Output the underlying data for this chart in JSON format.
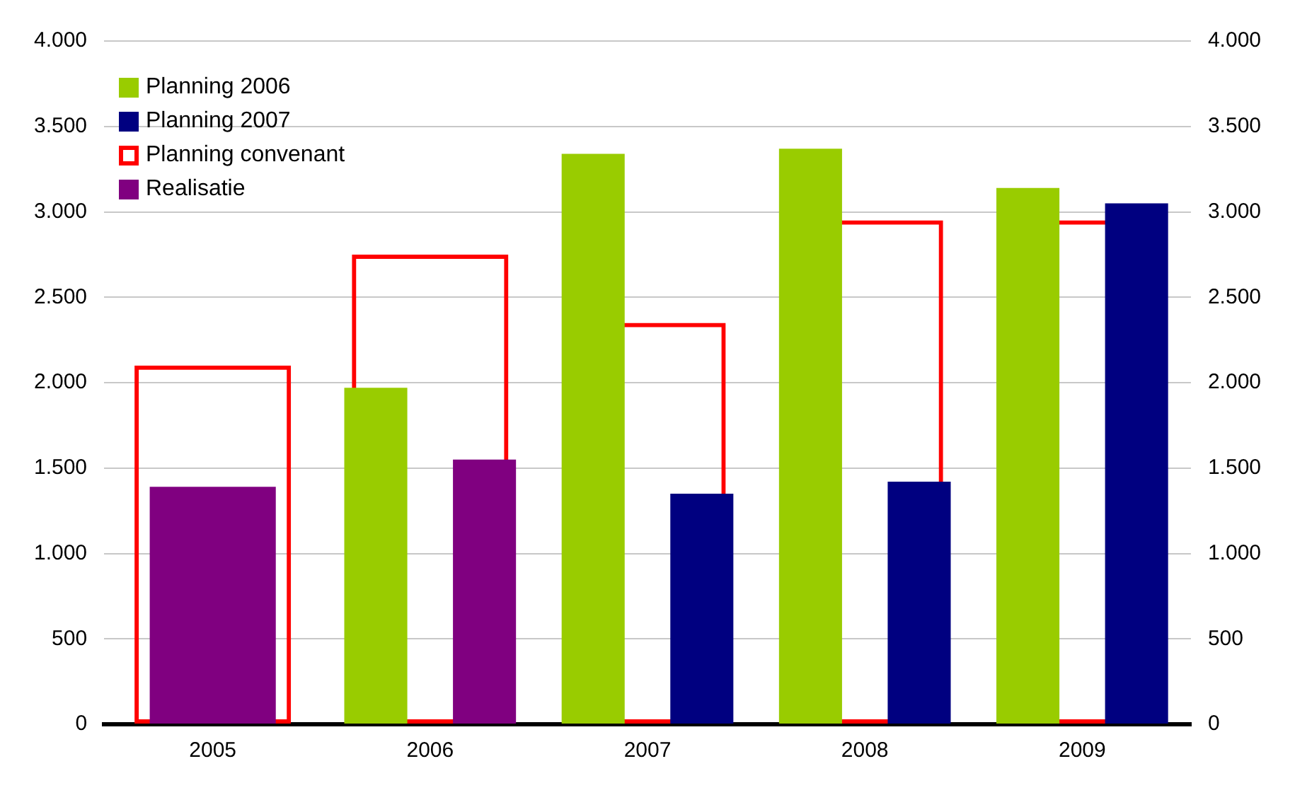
{
  "chart_data": {
    "type": "bar",
    "categories": [
      "2005",
      "2006",
      "2007",
      "2008",
      "2009"
    ],
    "series": [
      {
        "name": "Planning 2006",
        "color": "#99cc00",
        "values": [
          null,
          1970,
          3340,
          3370,
          3140
        ]
      },
      {
        "name": "Planning 2007",
        "color": "#000080",
        "values": [
          null,
          null,
          1350,
          1420,
          3050
        ]
      },
      {
        "name": "Planning convenant",
        "color": "#ff0000",
        "line_style": "solid",
        "values": [
          2100,
          2750,
          2350,
          2950,
          2950
        ]
      },
      {
        "name": "Realisatie",
        "color": "#800080",
        "values": [
          1390,
          1550,
          null,
          null,
          null
        ]
      }
    ],
    "ylim": [
      0,
      4000
    ],
    "yticks": [
      {
        "value": 0,
        "label": "0"
      },
      {
        "value": 500,
        "label": "500"
      },
      {
        "value": 1000,
        "label": "1.000"
      },
      {
        "value": 1500,
        "label": "1.500"
      },
      {
        "value": 2000,
        "label": "2.000"
      },
      {
        "value": 2500,
        "label": "2.500"
      },
      {
        "value": 3000,
        "label": "3.000"
      },
      {
        "value": 3500,
        "label": "3.500"
      },
      {
        "value": 4000,
        "label": "4.000"
      }
    ],
    "y2lim": [
      0,
      4000
    ],
    "y2ticks": [
      {
        "value": 0,
        "label": "0"
      },
      {
        "value": 500,
        "label": "500"
      },
      {
        "value": 1000,
        "label": "1.000"
      },
      {
        "value": 1500,
        "label": "1.500"
      },
      {
        "value": 2000,
        "label": "2.000"
      },
      {
        "value": 2500,
        "label": "2.500"
      },
      {
        "value": 3000,
        "label": "3.000"
      },
      {
        "value": 3500,
        "label": "3.500"
      },
      {
        "value": 4000,
        "label": "4.000"
      }
    ],
    "grid": "y",
    "legend": "top left"
  }
}
